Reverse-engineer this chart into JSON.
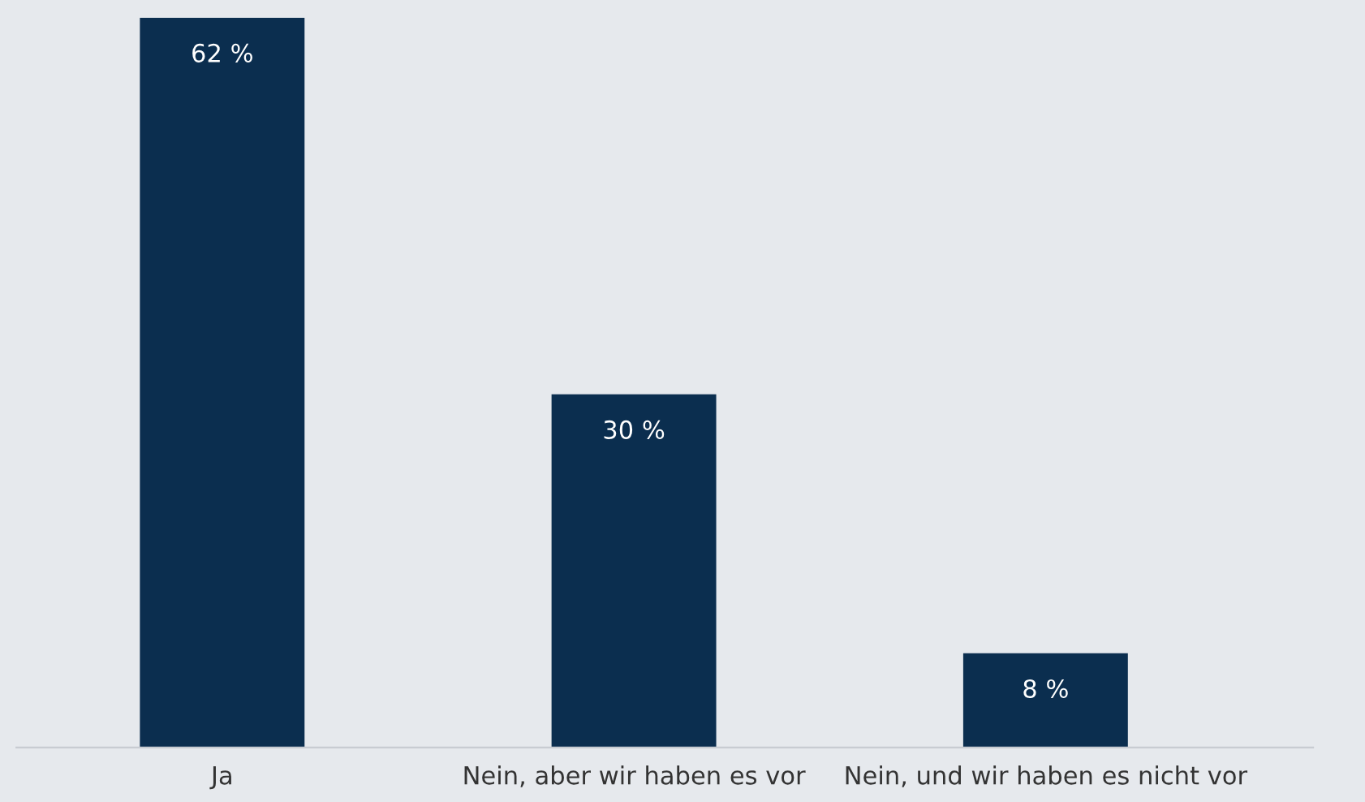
{
  "chart_data": {
    "type": "bar",
    "categories": [
      "Ja",
      "Nein, aber wir haben es vor",
      "Nein, und wir haben es nicht vor"
    ],
    "values": [
      62,
      30,
      8
    ],
    "value_labels": [
      "62 %",
      "30 %",
      "8 %"
    ],
    "color": "#0b2e4f",
    "grid": false,
    "legend": false
  }
}
